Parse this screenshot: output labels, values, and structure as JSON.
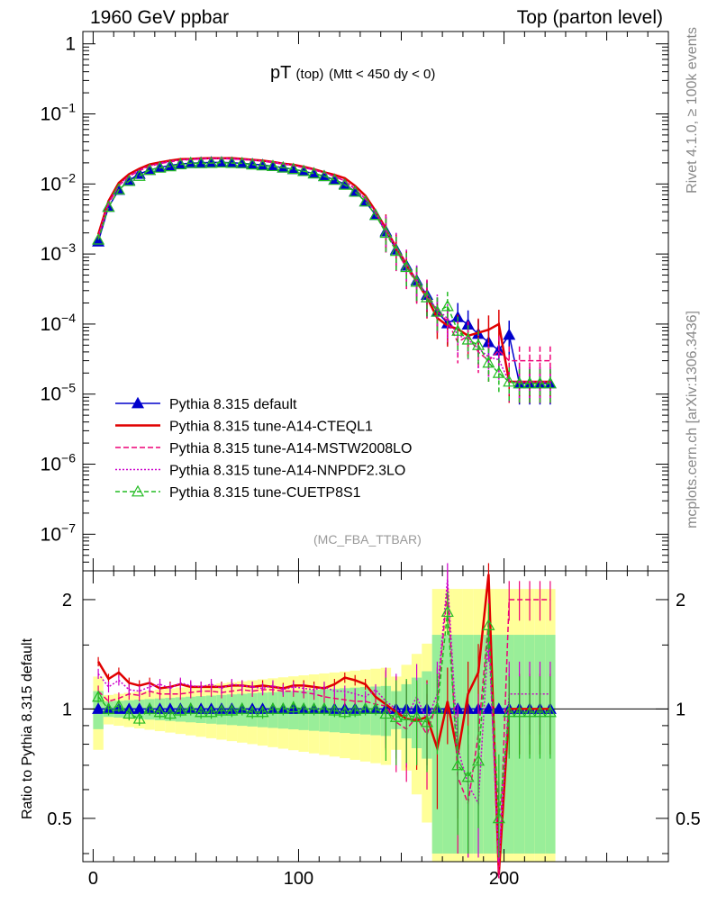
{
  "header": {
    "left": "1960 GeV ppbar",
    "right": "Top (parton level)"
  },
  "side_labels": {
    "rivet": "Rivet 4.1.0, ≥ 100k events",
    "mcplots": "mcplots.cern.ch [arXiv:1306.3436]"
  },
  "chart_data": {
    "type": "line",
    "title": "pT",
    "title_sub": "(top)",
    "title_cut": "(Mtt < 450 dy < 0)",
    "watermark": "(MC_FBA_TTBAR)",
    "main": {
      "yscale": "log",
      "ylim": [
        3e-08,
        1.5
      ],
      "xlim": [
        -5,
        280
      ],
      "ytick_labels": [
        {
          "v": 1,
          "t": "1"
        },
        {
          "v": 0.1,
          "t": "10^-1"
        },
        {
          "v": 0.01,
          "t": "10^-2"
        },
        {
          "v": 0.001,
          "t": "10^-3"
        },
        {
          "v": 0.0001,
          "t": "10^-4"
        },
        {
          "v": 1e-05,
          "t": "10^-5"
        },
        {
          "v": 1e-06,
          "t": "10^-6"
        },
        {
          "v": 1e-07,
          "t": "10^-7"
        }
      ],
      "legend": [
        {
          "label": "Pythia 8.315 default",
          "color": "#0000cc",
          "dash": "",
          "marker": "tri-filled"
        },
        {
          "label": "Pythia 8.315 tune-A14-CTEQL1",
          "color": "#e00000",
          "dash": "",
          "marker": "none"
        },
        {
          "label": "Pythia 8.315 tune-A14-MSTW2008LO",
          "color": "#ee0077",
          "dash": "6,3",
          "marker": "none"
        },
        {
          "label": "Pythia 8.315 tune-A14-NNPDF2.3LO",
          "color": "#cc00cc",
          "dash": "2,2",
          "marker": "none"
        },
        {
          "label": "Pythia 8.315 tune-CUETP8S1",
          "color": "#22bb22",
          "dash": "5,3",
          "marker": "tri-open"
        }
      ]
    },
    "ratio": {
      "ylabel": "Ratio to Pythia 8.315 default",
      "ylim": [
        0.38,
        2.4
      ],
      "ytick_labels": [
        {
          "v": 0.5,
          "t": "0.5"
        },
        {
          "v": 1,
          "t": "1"
        },
        {
          "v": 2,
          "t": "2"
        }
      ]
    },
    "xticks": [
      {
        "v": 0,
        "t": "0"
      },
      {
        "v": 100,
        "t": "100"
      },
      {
        "v": 200,
        "t": "200"
      }
    ],
    "x": [
      2.5,
      7.5,
      12.5,
      17.5,
      22.5,
      27.5,
      32.5,
      37.5,
      42.5,
      47.5,
      52.5,
      57.5,
      62.5,
      67.5,
      72.5,
      77.5,
      82.5,
      87.5,
      92.5,
      97.5,
      102.5,
      107.5,
      112.5,
      117.5,
      122.5,
      127.5,
      132.5,
      137.5,
      142.5,
      147.5,
      152.5,
      157.5,
      162.5,
      167.5,
      172.5,
      177.5,
      182.5,
      187.5,
      192.5,
      197.5,
      202.5,
      207.5,
      212.5,
      217.5,
      222.5
    ],
    "series": [
      {
        "name": "Pythia 8.315 default",
        "values": [
          0.0015,
          0.0047,
          0.0082,
          0.0113,
          0.0139,
          0.0158,
          0.0173,
          0.0184,
          0.0193,
          0.0198,
          0.0201,
          0.0203,
          0.0203,
          0.0201,
          0.0197,
          0.0192,
          0.0186,
          0.0179,
          0.0171,
          0.0162,
          0.0152,
          0.0141,
          0.0129,
          0.0115,
          0.0099,
          0.0078,
          0.0056,
          0.0036,
          0.0021,
          0.00115,
          0.00068,
          0.00042,
          0.00026,
          0.00015,
          0.000102,
          0.000125,
          9.8e-05,
          7.2e-05,
          5.5e-05,
          4.2e-05,
          7e-05,
          1.42e-05,
          1.42e-05,
          1.42e-05,
          1.42e-05
        ],
        "ratio": [
          1,
          1,
          1,
          1,
          1,
          1,
          1,
          1,
          1,
          1,
          1,
          1,
          1,
          1,
          1,
          1,
          1,
          1,
          1,
          1,
          1,
          1,
          1,
          1,
          1,
          1,
          1,
          1,
          1,
          1,
          1,
          1,
          1,
          1,
          1,
          1,
          1,
          1,
          1,
          1,
          1,
          1,
          1,
          1,
          1
        ]
      },
      {
        "name": "Pythia 8.315 tune-A14-CTEQL1",
        "values": [
          0.0019,
          0.0057,
          0.0104,
          0.0138,
          0.0165,
          0.019,
          0.0203,
          0.0215,
          0.0226,
          0.0228,
          0.0232,
          0.0234,
          0.0233,
          0.0234,
          0.0228,
          0.0221,
          0.0215,
          0.0206,
          0.0195,
          0.0188,
          0.0176,
          0.0162,
          0.0147,
          0.0135,
          0.0121,
          0.0094,
          0.0068,
          0.0041,
          0.0023,
          0.00124,
          0.00072,
          0.0004,
          0.00024,
          0.000122,
          9.5e-05,
          8.5e-05,
          6.8e-05,
          7.5e-05,
          8.3e-05,
          0.0001,
          1.5e-05,
          1.5e-05,
          1.5e-05,
          1.5e-05,
          1.5e-05
        ],
        "ratio": [
          1.35,
          1.21,
          1.26,
          1.18,
          1.16,
          1.18,
          1.14,
          1.15,
          1.17,
          1.15,
          1.15,
          1.15,
          1.15,
          1.16,
          1.16,
          1.15,
          1.16,
          1.15,
          1.14,
          1.16,
          1.16,
          1.15,
          1.14,
          1.17,
          1.22,
          1.2,
          1.17,
          1.08,
          1.03,
          0.98,
          0.94,
          0.93,
          0.95,
          0.78,
          1.05,
          0.75,
          1.1,
          1.26,
          2.35,
          0.35,
          1.0,
          1.0,
          1.0,
          1.0,
          1.0
        ]
      },
      {
        "name": "Pythia 8.315 tune-A14-MSTW2008LO",
        "values": [
          0.0017,
          0.0052,
          0.0095,
          0.0128,
          0.0155,
          0.0178,
          0.0195,
          0.0207,
          0.0217,
          0.0223,
          0.0227,
          0.0229,
          0.0229,
          0.0227,
          0.0223,
          0.0217,
          0.0211,
          0.0202,
          0.0192,
          0.0182,
          0.0171,
          0.0158,
          0.0144,
          0.0128,
          0.011,
          0.0085,
          0.0061,
          0.0039,
          0.0021,
          0.00114,
          0.00063,
          0.00039,
          0.00027,
          0.00015,
          0.00011,
          5.5e-05,
          6.8e-05,
          4e-05,
          3e-05,
          4.2e-05,
          3e-05,
          3e-05,
          3e-05,
          3e-05,
          3e-05
        ],
        "ratio": [
          1.12,
          1.05,
          1.07,
          1.1,
          1.09,
          1.12,
          1.1,
          1.1,
          1.1,
          1.11,
          1.12,
          1.12,
          1.11,
          1.12,
          1.13,
          1.12,
          1.13,
          1.13,
          1.12,
          1.12,
          1.11,
          1.1,
          1.08,
          1.07,
          1.06,
          1.05,
          1.05,
          1.03,
          1.02,
          0.92,
          0.88,
          0.95,
          0.85,
          1.05,
          2.15,
          0.65,
          0.55,
          0.85,
          1.75,
          0.3,
          2.0,
          2.0,
          2.0,
          2.0,
          2.0
        ]
      },
      {
        "name": "Pythia 8.315 tune-A14-NNPDF2.3LO",
        "values": [
          0.0018,
          0.0054,
          0.0096,
          0.0131,
          0.0158,
          0.0181,
          0.0198,
          0.0211,
          0.022,
          0.0226,
          0.023,
          0.0232,
          0.0232,
          0.023,
          0.0226,
          0.022,
          0.0213,
          0.0205,
          0.0195,
          0.0184,
          0.0172,
          0.0159,
          0.0145,
          0.0129,
          0.0111,
          0.0086,
          0.0061,
          0.004,
          0.0022,
          0.00125,
          0.00072,
          0.00043,
          0.00024,
          0.000165,
          0.00012,
          7e-05,
          6e-05,
          4.5e-05,
          3.4e-05,
          3.1e-05,
          1.5e-05,
          1.5e-05,
          1.5e-05,
          1.5e-05,
          1.5e-05
        ],
        "ratio": [
          1.25,
          1.15,
          1.2,
          1.13,
          1.12,
          1.15,
          1.17,
          1.14,
          1.18,
          1.16,
          1.15,
          1.17,
          1.14,
          1.17,
          1.16,
          1.15,
          1.14,
          1.16,
          1.13,
          1.15,
          1.14,
          1.13,
          1.15,
          1.12,
          1.12,
          1.1,
          1.08,
          1.13,
          1.05,
          1.0,
          0.95,
          1.08,
          0.93,
          1.1,
          2.28,
          0.78,
          0.62,
          0.55,
          1.6,
          0.38,
          1.1,
          1.1,
          1.1,
          1.1,
          1.1
        ]
      },
      {
        "name": "Pythia 8.315 tune-CUETP8S1",
        "values": [
          0.0016,
          0.0047,
          0.0083,
          0.011,
          0.013,
          0.0158,
          0.017,
          0.0178,
          0.019,
          0.0198,
          0.0197,
          0.0199,
          0.0201,
          0.0199,
          0.0197,
          0.0189,
          0.0183,
          0.0179,
          0.0171,
          0.0163,
          0.0152,
          0.0141,
          0.0129,
          0.0114,
          0.0097,
          0.0077,
          0.0056,
          0.0036,
          0.002,
          0.0011,
          0.00065,
          0.0004,
          0.00024,
          0.00015,
          0.00018,
          8e-05,
          6e-05,
          5e-05,
          2.8e-05,
          2e-05,
          1.5e-05,
          1.42e-05,
          1.42e-05,
          1.42e-05,
          1.42e-05
        ],
        "ratio": [
          1.08,
          1.0,
          1.02,
          0.97,
          0.94,
          1.0,
          0.98,
          0.97,
          0.99,
          1.0,
          0.98,
          0.98,
          0.99,
          0.99,
          1.0,
          0.98,
          0.98,
          1.0,
          1.0,
          1.01,
          1.0,
          1.0,
          1.0,
          0.99,
          0.98,
          0.99,
          1.0,
          1.0,
          0.97,
          0.95,
          0.96,
          0.95,
          0.92,
          1.0,
          1.85,
          0.7,
          0.65,
          0.72,
          1.7,
          0.5,
          0.98,
          0.98,
          0.98,
          0.98,
          0.98
        ]
      }
    ]
  }
}
